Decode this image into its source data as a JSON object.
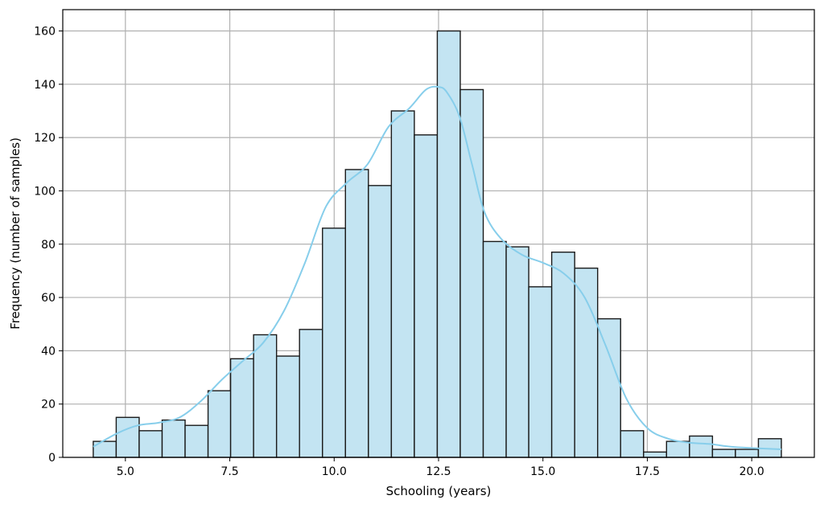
{
  "chart_data": {
    "type": "bar",
    "title": "",
    "xlabel": "Schooling (years)",
    "ylabel": "Frequency (number of samples)",
    "xlim": [
      3.5,
      21.5
    ],
    "ylim": [
      0,
      168
    ],
    "xticks": [
      5.0,
      7.5,
      10.0,
      12.5,
      15.0,
      17.5,
      20.0
    ],
    "xtick_labels": [
      "5.0",
      "7.5",
      "10.0",
      "12.5",
      "15.0",
      "17.5",
      "20.0"
    ],
    "yticks": [
      0,
      20,
      40,
      60,
      80,
      100,
      120,
      140,
      160
    ],
    "ytick_labels": [
      "0",
      "20",
      "40",
      "60",
      "80",
      "100",
      "120",
      "140",
      "160"
    ],
    "grid": true,
    "bins": [
      [
        4.23,
        4.78
      ],
      [
        4.78,
        5.33
      ],
      [
        5.33,
        5.88
      ],
      [
        5.88,
        6.43
      ],
      [
        6.43,
        6.98
      ],
      [
        6.98,
        7.52
      ],
      [
        7.52,
        8.07
      ],
      [
        8.07,
        8.62
      ],
      [
        8.62,
        9.17
      ],
      [
        9.17,
        9.72
      ],
      [
        9.72,
        10.27
      ],
      [
        10.27,
        10.82
      ],
      [
        10.82,
        11.37
      ],
      [
        11.37,
        11.92
      ],
      [
        11.92,
        12.47
      ],
      [
        12.47,
        13.02
      ],
      [
        13.02,
        13.57
      ],
      [
        13.57,
        14.12
      ],
      [
        14.12,
        14.66
      ],
      [
        14.66,
        15.21
      ],
      [
        15.21,
        15.76
      ],
      [
        15.76,
        16.31
      ],
      [
        16.31,
        16.86
      ],
      [
        16.86,
        17.41
      ],
      [
        17.41,
        17.96
      ],
      [
        17.96,
        18.51
      ],
      [
        18.51,
        19.06
      ],
      [
        19.06,
        19.61
      ],
      [
        19.61,
        20.16
      ],
      [
        20.16,
        20.71
      ]
    ],
    "values": [
      6,
      15,
      10,
      14,
      12,
      25,
      37,
      46,
      38,
      48,
      86,
      108,
      102,
      130,
      121,
      160,
      138,
      81,
      79,
      64,
      77,
      71,
      52,
      10,
      2,
      6,
      8,
      3,
      3,
      7
    ],
    "kde": {
      "x": [
        4.23,
        4.8,
        5.3,
        5.8,
        6.3,
        6.8,
        7.3,
        7.8,
        8.3,
        8.8,
        9.3,
        9.8,
        10.3,
        10.8,
        11.3,
        11.8,
        12.2,
        12.5,
        12.7,
        13.0,
        13.3,
        13.6,
        14.0,
        14.5,
        15.0,
        15.5,
        16.0,
        16.5,
        17.0,
        17.5,
        18.0,
        18.5,
        19.0,
        19.5,
        20.0,
        20.71
      ],
      "y": [
        4,
        9,
        12,
        13,
        15,
        21,
        29,
        36,
        43,
        55,
        73,
        94,
        103,
        110,
        124,
        131,
        138,
        139,
        137,
        128,
        110,
        92,
        82,
        76,
        73,
        69,
        60,
        42,
        22,
        11,
        7,
        5.5,
        5,
        4,
        3.5,
        3
      ]
    },
    "bar_fill": "#c3e4f2",
    "bar_edge": "#1a1a1a",
    "kde_color": "#87ceeb",
    "grid_color": "#b0b0b0"
  }
}
